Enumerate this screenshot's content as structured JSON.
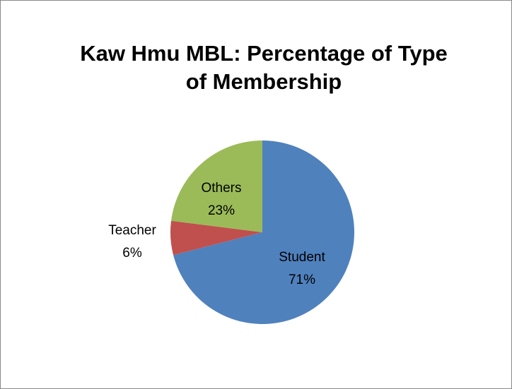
{
  "chart_data": {
    "type": "pie",
    "title": "Kaw Hmu MBL: Percentage of Type of Membership",
    "categories": [
      "Student",
      "Teacher",
      "Others"
    ],
    "values": [
      71,
      6,
      23
    ],
    "value_labels": [
      "71%",
      "6%",
      "23%"
    ],
    "colors": [
      "#4f81bd",
      "#c0504d",
      "#9bbb59"
    ]
  }
}
